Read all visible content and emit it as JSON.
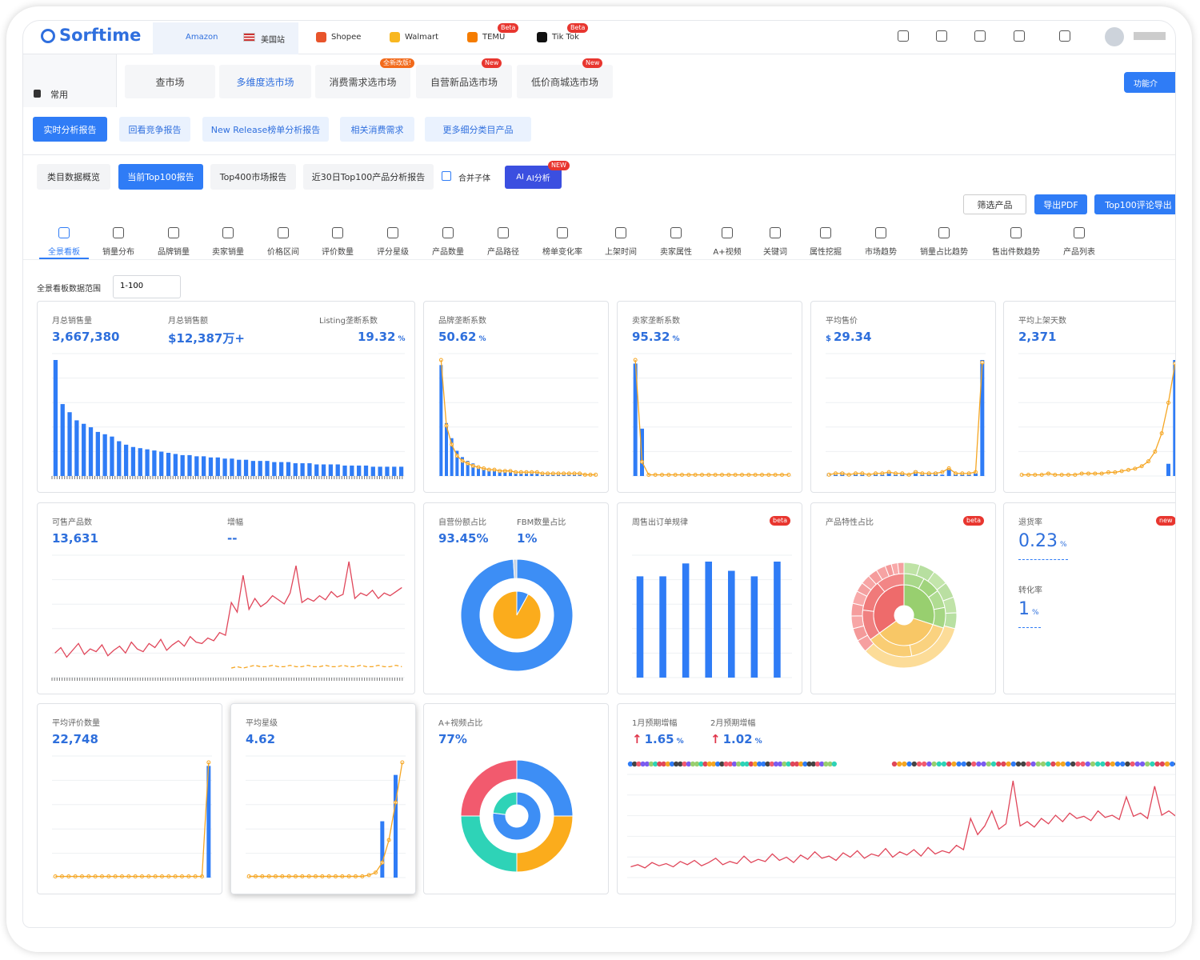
{
  "nav": {
    "logo": "Sorftime",
    "platform": "Amazon",
    "region": "美国站",
    "platforms": [
      {
        "name": "Shopee"
      },
      {
        "name": "Walmart"
      },
      {
        "name": "TEMU",
        "badge": "Beta"
      },
      {
        "name": "Tik Tok",
        "badge": "Beta"
      }
    ]
  },
  "sidebar": {
    "label": "常用"
  },
  "market_tabs": [
    {
      "label": "查市场"
    },
    {
      "label": "多维度选市场"
    },
    {
      "label": "消费需求选市场",
      "badge": "全新改版!"
    },
    {
      "label": "自营新品选市场",
      "badge": "New"
    },
    {
      "label": "低价商城选市场",
      "badge": "New"
    }
  ],
  "help_button": "功能介",
  "report_tabs": [
    "实时分析报告",
    "回看竞争报告",
    "New Release榜单分析报告",
    "相关消费需求",
    "更多细分类目产品"
  ],
  "sub_tabs": [
    "类目数据概览",
    "当前Top100报告",
    "Top400市场报告",
    "近30日Top100产品分析报告"
  ],
  "merge_checkbox": "合并子体",
  "ai_button": {
    "icon": "AI",
    "label": "AI分析",
    "badge": "NEW"
  },
  "actions": [
    "筛选产品",
    "导出PDF",
    "Top100评论导出"
  ],
  "analysis_tabs": [
    "全景看板",
    "销量分布",
    "品牌销量",
    "卖家销量",
    "价格区间",
    "评价数量",
    "评分星级",
    "产品数量",
    "产品路径",
    "榜单变化率",
    "上架时间",
    "卖家属性",
    "A+视频",
    "关键词",
    "属性挖掘",
    "市场趋势",
    "销量占比趋势",
    "售出件数趋势",
    "产品列表"
  ],
  "range": {
    "label": "全景看板数据范围",
    "value": "1-100"
  },
  "cards": [
    {
      "metrics": [
        {
          "label": "月总销售量",
          "value": "3,667,380"
        },
        {
          "label": "月总销售额",
          "value": "$12,387万+"
        },
        {
          "label": "Listing垄断系数",
          "value": "19.32",
          "unit": "%"
        }
      ],
      "chart": {
        "type": "bar",
        "series": [
          {
            "color": "#2f7cf6",
            "values": [
              100,
              62,
              55,
              48,
              45,
              42,
              38,
              36,
              34,
              30,
              27,
              25,
              24,
              23,
              22,
              21,
              20,
              19,
              18,
              18,
              17,
              17,
              16,
              16,
              15,
              15,
              14,
              14,
              13,
              13,
              13,
              12,
              12,
              12,
              11,
              11,
              11,
              10,
              10,
              10,
              10,
              9,
              9,
              9,
              9,
              8,
              8,
              8,
              8,
              8
            ]
          }
        ]
      }
    },
    {
      "metrics": [
        {
          "label": "品牌垄断系数",
          "value": "50.62",
          "unit": "%"
        }
      ],
      "chart": {
        "type": "bar_line",
        "series": [
          {
            "color": "#2f7cf6",
            "kind": "bar",
            "values": [
              88,
              42,
              30,
              20,
              15,
              12,
              10,
              8,
              7,
              6,
              5,
              5,
              4,
              4,
              4,
              3,
              3,
              3,
              3,
              2,
              2,
              2,
              2,
              2,
              2,
              2,
              2,
              2,
              2,
              2
            ]
          },
          {
            "color": "#f5a623",
            "kind": "line",
            "values": [
              92,
              40,
              25,
              16,
              12,
              10,
              8,
              7,
              6,
              5,
              5,
              4,
              4,
              4,
              3,
              3,
              3,
              3,
              3,
              2,
              2,
              2,
              2,
              2,
              2,
              2,
              2,
              1,
              1,
              1
            ]
          }
        ]
      }
    },
    {
      "metrics": [
        {
          "label": "卖家垄断系数",
          "value": "95.32",
          "unit": "%"
        }
      ],
      "chart": {
        "type": "bar_line",
        "series": [
          {
            "color": "#2f7cf6",
            "kind": "bar",
            "values": [
              95,
              40,
              0,
              0,
              0,
              0,
              0,
              0,
              0,
              0,
              0,
              0,
              0,
              0,
              0,
              0,
              0,
              0,
              0,
              0,
              0,
              0,
              0,
              0
            ]
          },
          {
            "color": "#f5a623",
            "kind": "line",
            "values": [
              98,
              12,
              1,
              1,
              1,
              1,
              1,
              1,
              1,
              1,
              1,
              1,
              1,
              1,
              1,
              1,
              1,
              1,
              1,
              1,
              1,
              1,
              1,
              1
            ]
          }
        ]
      }
    },
    {
      "metrics": [
        {
          "label": "平均售价",
          "prefix": "$",
          "value": "29.34"
        }
      ],
      "chart": {
        "type": "bar_line",
        "series": [
          {
            "color": "#2f7cf6",
            "kind": "bar",
            "values": [
              2,
              1,
              3,
              1,
              2,
              1,
              1,
              2,
              1,
              3,
              1,
              2,
              1,
              4,
              1,
              2,
              3,
              1,
              5,
              2,
              1,
              1,
              2,
              90
            ]
          },
          {
            "color": "#f5a623",
            "kind": "line",
            "values": [
              1,
              2,
              2,
              1,
              2,
              2,
              1,
              2,
              2,
              3,
              2,
              2,
              1,
              3,
              2,
              2,
              2,
              3,
              6,
              2,
              2,
              2,
              3,
              88
            ]
          }
        ]
      }
    },
    {
      "metrics": [
        {
          "label": "平均上架天数",
          "value": "2,371"
        }
      ],
      "chart": {
        "type": "bar_line",
        "series": [
          {
            "color": "#2f7cf6",
            "kind": "bar",
            "values": [
              0,
              0,
              0,
              0,
              0,
              0,
              0,
              0,
              0,
              0,
              0,
              0,
              0,
              0,
              0,
              0,
              0,
              0,
              0,
              0,
              0,
              0,
              10,
              95
            ]
          },
          {
            "color": "#f5a623",
            "kind": "line",
            "values": [
              1,
              1,
              1,
              1,
              2,
              1,
              1,
              1,
              1,
              2,
              2,
              2,
              2,
              3,
              3,
              4,
              5,
              6,
              8,
              12,
              20,
              35,
              60,
              92
            ]
          }
        ]
      }
    },
    {
      "metrics": [
        {
          "label": "可售产品数",
          "value": "13,631"
        },
        {
          "label": "增幅",
          "value": "--"
        }
      ],
      "chart": {
        "type": "line",
        "series": [
          {
            "color": "#e0465a",
            "values": [
              18,
              22,
              15,
              20,
              25,
              17,
              21,
              19,
              24,
              16,
              20,
              23,
              18,
              26,
              21,
              19,
              25,
              22,
              28,
              20,
              24,
              27,
              23,
              30,
              26,
              25,
              29,
              27,
              33,
              31,
              55,
              48,
              75,
              50,
              58,
              52,
              55,
              60,
              57,
              54,
              62,
              82,
              55,
              58,
              56,
              60,
              57,
              63,
              59,
              61,
              85,
              58,
              62,
              60,
              64,
              58,
              62,
              60,
              63,
              66
            ]
          },
          {
            "color": "#f5a623",
            "dash": true,
            "values": [
              null,
              null,
              null,
              null,
              null,
              null,
              null,
              null,
              null,
              null,
              null,
              null,
              null,
              null,
              null,
              null,
              null,
              null,
              null,
              null,
              null,
              null,
              null,
              null,
              null,
              null,
              null,
              null,
              null,
              null,
              7,
              8,
              7,
              8,
              9,
              8,
              8,
              9,
              8,
              8,
              9,
              8,
              8,
              9,
              8,
              8,
              9,
              8,
              8,
              9,
              8,
              8,
              9,
              8,
              8,
              9,
              8,
              8,
              9,
              8
            ]
          }
        ]
      }
    },
    {
      "metrics": [
        {
          "label": "自营份额占比",
          "value": "93.45%"
        },
        {
          "label": "FBM数量占比",
          "value": "1%"
        }
      ],
      "chart": {
        "type": "donut",
        "rings": [
          {
            "values": [
              8,
              92
            ],
            "colors": [
              "#3d8ef5",
              "#fbac1c"
            ]
          },
          {
            "values": [
              99,
              1
            ],
            "colors": [
              "#3d8ef5",
              "#c9d3e0"
            ]
          }
        ]
      }
    },
    {
      "metrics": [
        {
          "label": "周售出订单规律"
        }
      ],
      "badge": "beta",
      "chart": {
        "type": "bar",
        "series": [
          {
            "color": "#2f7cf6",
            "values": [
              55,
              55,
              62,
              63,
              58,
              55,
              63
            ]
          }
        ]
      }
    },
    {
      "metrics": [
        {
          "label": "产品特性占比"
        }
      ],
      "badge": "beta",
      "chart": {
        "type": "donut",
        "rings": [
          {
            "values": [
              30,
              35,
              35
            ],
            "colors": [
              "#98cf6f",
              "#f8c766",
              "#ee6b6b"
            ]
          },
          {
            "values": [
              8,
              7,
              7,
              8,
              17,
              18,
              12,
              12,
              11
            ],
            "colors": [
              "#a9d88a",
              "#a1d47d",
              "#b0dc92",
              "#a5d683",
              "#fad27f",
              "#f9cd74",
              "#f08080",
              "#f07a7a",
              "#f28686"
            ]
          },
          {
            "values": [
              5,
              5,
              5,
              5,
              5,
              5,
              35,
              4,
              4,
              4,
              4,
              4,
              3,
              3,
              3,
              3,
              2,
              2,
              2
            ],
            "colors": [
              "#bfe3a6",
              "#b7dfa0",
              "#c3e5ab",
              "#badfa2",
              "#c0e3a8",
              "#b8e0a2",
              "#fcdc98",
              "#f6a0a0",
              "#f49a9a",
              "#f7a6a6",
              "#f59d9d",
              "#f8aaaa",
              "#f4a0a0",
              "#f7a5a5",
              "#f59c9c",
              "#f6a3a3",
              "#f49999",
              "#f8a9a9",
              "#f5a0a0"
            ]
          }
        ]
      }
    },
    {
      "metrics": [
        {
          "label": "退货率",
          "value": "0.23",
          "unit": "%"
        },
        {
          "label": "转化率",
          "value": "1",
          "unit": "%"
        }
      ],
      "badge": "new"
    },
    {
      "metrics": [
        {
          "label": "平均评价数量",
          "value": "22,748"
        }
      ],
      "chart": {
        "type": "bar_line",
        "series": [
          {
            "color": "#2f7cf6",
            "kind": "bar",
            "values": [
              0,
              0,
              0,
              0,
              0,
              0,
              0,
              0,
              0,
              0,
              0,
              0,
              0,
              0,
              0,
              0,
              0,
              0,
              0,
              0,
              0,
              0,
              0,
              95
            ]
          },
          {
            "color": "#f5a623",
            "kind": "line",
            "values": [
              1,
              1,
              1,
              1,
              1,
              1,
              1,
              1,
              1,
              1,
              1,
              1,
              1,
              1,
              1,
              1,
              1,
              1,
              1,
              1,
              1,
              1,
              1,
              98
            ]
          }
        ]
      }
    },
    {
      "metrics": [
        {
          "label": "平均星级",
          "value": "4.62"
        }
      ],
      "chart": {
        "type": "bar_line",
        "series": [
          {
            "color": "#2f7cf6",
            "kind": "bar",
            "values": [
              0,
              0,
              0,
              0,
              0,
              0,
              0,
              0,
              0,
              0,
              0,
              0,
              0,
              0,
              0,
              0,
              0,
              0,
              0,
              0,
              45,
              0,
              82,
              0
            ]
          },
          {
            "color": "#f5a623",
            "kind": "line",
            "values": [
              1,
              1,
              1,
              1,
              1,
              1,
              1,
              1,
              1,
              1,
              1,
              1,
              1,
              1,
              1,
              1,
              1,
              1,
              2,
              4,
              12,
              30,
              60,
              92
            ]
          }
        ]
      }
    },
    {
      "metrics": [
        {
          "label": "A+视频占比",
          "value": "77%"
        }
      ],
      "chart": {
        "type": "donut",
        "rings": [
          {
            "values": [
              77,
              23
            ],
            "colors": [
              "#3d8ef5",
              "#2ed3b7"
            ]
          },
          {
            "values": [
              25,
              25,
              25,
              25
            ],
            "colors": [
              "#3d8ef5",
              "#fbac1c",
              "#2ed3b7",
              "#f25a6e"
            ]
          }
        ]
      }
    },
    {
      "metrics": [
        {
          "label": "1月预期增幅",
          "prefix": "↑",
          "value": "1.65",
          "unit": "%"
        },
        {
          "label": "2月预期增幅",
          "prefix": "↑",
          "value": "1.02",
          "unit": "%"
        }
      ],
      "chart": {
        "type": "line",
        "series": [
          {
            "color": "#e0465a",
            "values": [
              10,
              12,
              9,
              14,
              11,
              13,
              10,
              15,
              12,
              16,
              11,
              14,
              18,
              12,
              15,
              13,
              20,
              14,
              17,
              15,
              22,
              16,
              19,
              14,
              21,
              17,
              24,
              18,
              20,
              16,
              23,
              19,
              25,
              18,
              22,
              20,
              27,
              19,
              24,
              21,
              26,
              20,
              28,
              22,
              25,
              23,
              30,
              26,
              55,
              40,
              48,
              62,
              45,
              50,
              90,
              48,
              52,
              47,
              55,
              50,
              58,
              52,
              60,
              55,
              57,
              53,
              62,
              56,
              58,
              54,
              75,
              57,
              60,
              55,
              85,
              58,
              62,
              57,
              80,
              60
            ]
          }
        ]
      }
    }
  ]
}
